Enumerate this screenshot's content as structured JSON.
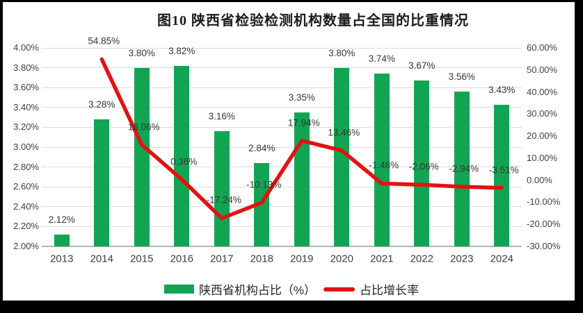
{
  "title": "图10  陕西省检验检测机构数量占全国的比重情况",
  "colors": {
    "bar": "#11a553",
    "line": "#e41111",
    "grid": "#dadada",
    "axis_line": "#b3b3b3",
    "background": "#ffffff",
    "frame": "#000000"
  },
  "legend": {
    "items": [
      {
        "label": "陕西省机构占比（%）",
        "swatch": "bar-swatch"
      },
      {
        "label": "占比增长率",
        "swatch": "line-swatch"
      }
    ]
  },
  "chart_data": {
    "type": "bar",
    "combo": "bar+line",
    "title": "图10  陕西省检验检测机构数量占全国的比重情况",
    "categories": [
      "2013",
      "2014",
      "2015",
      "2016",
      "2017",
      "2018",
      "2019",
      "2020",
      "2021",
      "2022",
      "2023",
      "2024"
    ],
    "series": [
      {
        "name": "陕西省机构占比（%）",
        "type": "bar",
        "axis": "left",
        "values": [
          2.12,
          3.28,
          3.8,
          3.82,
          3.16,
          2.84,
          3.35,
          3.8,
          3.74,
          3.67,
          3.56,
          3.43
        ],
        "labels": [
          "2.12%",
          "3.28%",
          "3.80%",
          "3.82%",
          "3.16%",
          "2.84%",
          "3.35%",
          "3.80%",
          "3.74%",
          "3.67%",
          "3.56%",
          "3.43%"
        ]
      },
      {
        "name": "占比增长率",
        "type": "line",
        "axis": "right",
        "values": [
          null,
          54.85,
          16.06,
          0.36,
          -17.24,
          -10.13,
          17.94,
          13.46,
          -1.48,
          -2.06,
          -2.94,
          -3.51
        ],
        "labels": [
          "",
          "54.85%",
          "16.06%",
          "0.36%",
          "-17.24%",
          "-10.13%",
          "17.94%",
          "13.46%",
          "-1.48%",
          "-2.06%",
          "-2.94%",
          "-3.51%"
        ]
      }
    ],
    "left_axis": {
      "min": 2.0,
      "max": 4.0,
      "step": 0.2,
      "ticks": [
        "4.00%",
        "3.80%",
        "3.60%",
        "3.40%",
        "3.20%",
        "3.00%",
        "2.80%",
        "2.60%",
        "2.40%",
        "2.20%",
        "2.00%"
      ]
    },
    "right_axis": {
      "min": -30,
      "max": 60,
      "step": 10,
      "ticks": [
        "60.00%",
        "50.00%",
        "40.00%",
        "30.00%",
        "20.00%",
        "10.00%",
        "0.00%",
        "-10.00%",
        "-20.00%",
        "-30.00%"
      ]
    },
    "grid": "horizontal",
    "legend_position": "bottom"
  }
}
